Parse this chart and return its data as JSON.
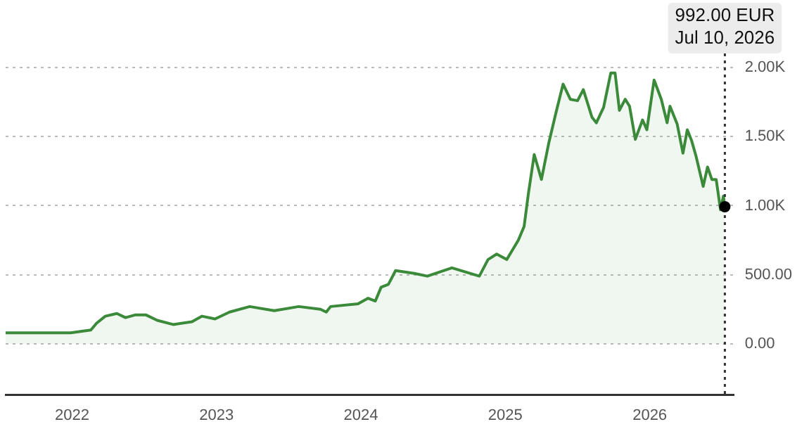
{
  "chart_data": {
    "type": "area",
    "x": [
      2021.54,
      2021.67,
      2021.82,
      2021.99,
      2022.13,
      2022.17,
      2022.23,
      2022.31,
      2022.37,
      2022.44,
      2022.51,
      2022.59,
      2022.7,
      2022.83,
      2022.9,
      2022.99,
      2023.09,
      2023.23,
      2023.4,
      2023.57,
      2023.72,
      2023.76,
      2023.79,
      2023.98,
      2024.05,
      2024.1,
      2024.14,
      2024.19,
      2024.24,
      2024.37,
      2024.46,
      2024.63,
      2024.82,
      2024.88,
      2024.94,
      2025.01,
      2025.09,
      2025.13,
      2025.16,
      2025.2,
      2025.25,
      2025.3,
      2025.35,
      2025.4,
      2025.45,
      2025.5,
      2025.54,
      2025.6,
      2025.63,
      2025.68,
      2025.73,
      2025.76,
      2025.79,
      2025.83,
      2025.86,
      2025.9,
      2025.95,
      2025.98,
      2026.03,
      2026.08,
      2026.12,
      2026.14,
      2026.19,
      2026.23,
      2026.26,
      2026.29,
      2026.32,
      2026.37,
      2026.4,
      2026.43,
      2026.46,
      2026.49,
      2026.51,
      2026.52
    ],
    "series": [
      {
        "color": "#3a8a3a",
        "values": [
          80,
          80,
          80,
          80,
          100,
          150,
          200,
          220,
          190,
          210,
          210,
          170,
          140,
          160,
          200,
          180,
          230,
          270,
          240,
          270,
          250,
          230,
          270,
          290,
          330,
          310,
          410,
          430,
          530,
          510,
          490,
          550,
          490,
          610,
          650,
          610,
          750,
          850,
          1090,
          1370,
          1190,
          1450,
          1670,
          1880,
          1770,
          1760,
          1840,
          1640,
          1600,
          1710,
          1960,
          1960,
          1690,
          1770,
          1720,
          1480,
          1620,
          1550,
          1910,
          1770,
          1600,
          1720,
          1590,
          1380,
          1550,
          1470,
          1360,
          1140,
          1280,
          1190,
          1190,
          970,
          1070,
          992
        ]
      }
    ],
    "xlim": [
      2021.54,
      2026.58
    ],
    "xticks": [
      2022,
      2023,
      2024,
      2025,
      2026
    ],
    "ylim": [
      -370,
      2000
    ],
    "yticks": [
      {
        "value": 0,
        "label": "0.00"
      },
      {
        "value": 500,
        "label": "500.00"
      },
      {
        "value": 1000,
        "label": "1.00K"
      },
      {
        "value": 1500,
        "label": "1.50K"
      },
      {
        "value": 2000,
        "label": "2.00K"
      }
    ],
    "grid": "y",
    "legend": false,
    "marker": "none",
    "ref_lines": [
      {
        "axis": "x",
        "value": 2026.52,
        "line_style": "dotted",
        "color": "#333333"
      }
    ],
    "annotations": [
      "992.00 EUR",
      "Jul 10, 2026"
    ]
  }
}
